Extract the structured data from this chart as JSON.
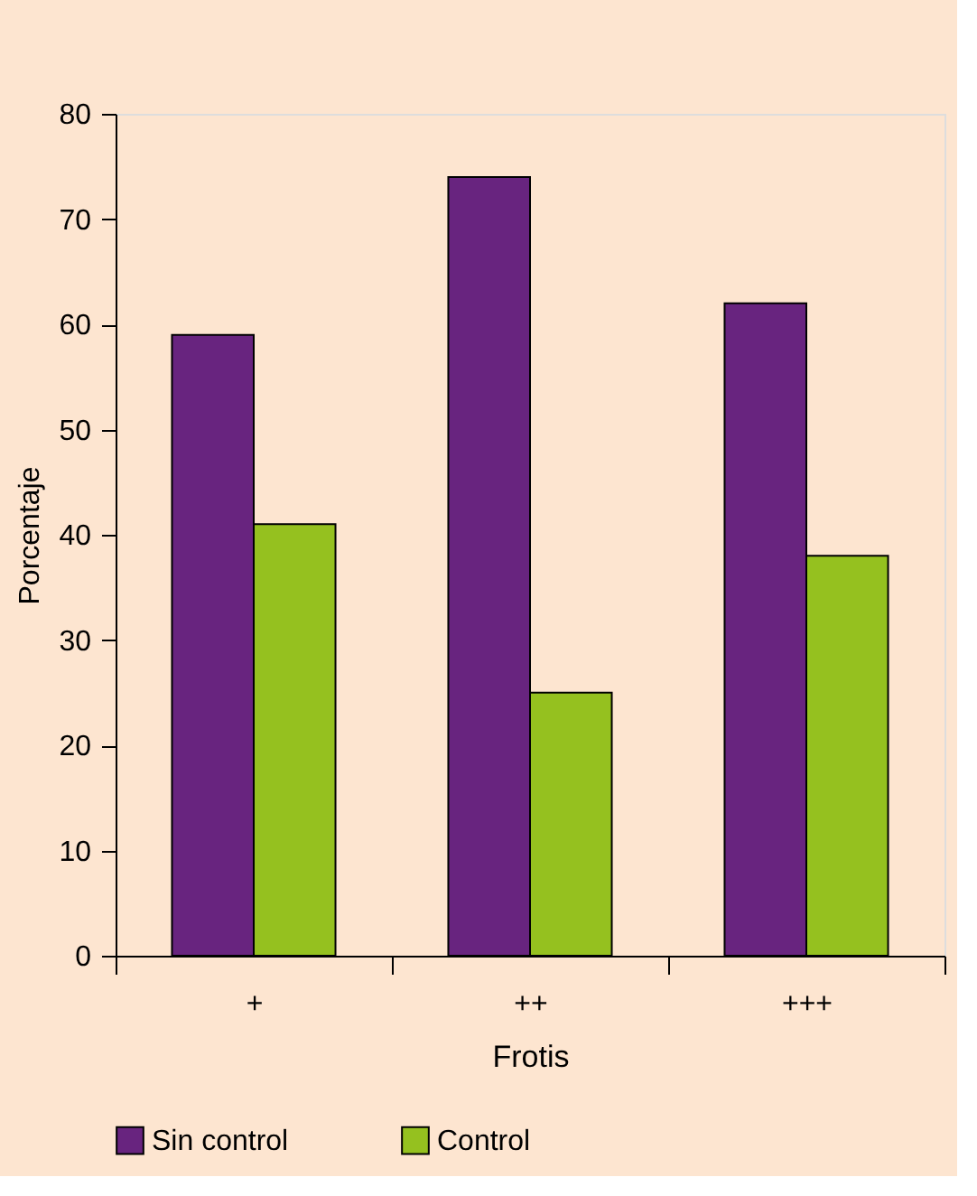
{
  "chart_data": {
    "type": "bar",
    "xlabel": "Frotis",
    "ylabel": "Porcentaje",
    "categories": [
      "+",
      "++",
      "+++"
    ],
    "series": [
      {
        "name": "Sin control",
        "color": "#68247f",
        "values": [
          59,
          74,
          62
        ]
      },
      {
        "name": "Control",
        "color": "#95c11f",
        "values": [
          41,
          25,
          38
        ]
      }
    ],
    "ylim": [
      0,
      80
    ],
    "yticks": [
      0,
      10,
      20,
      30,
      40,
      50,
      60,
      70,
      80
    ],
    "grid": false,
    "legend": "bottom"
  }
}
